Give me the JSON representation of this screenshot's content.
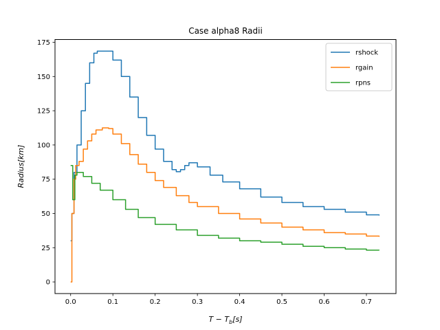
{
  "chart_data": {
    "type": "line",
    "title": "Case alpha8 Radii",
    "xlabel": "T − T_b[s]",
    "ylabel": "Radius[km]",
    "xlim": [
      -0.037,
      0.77
    ],
    "ylim": [
      -8.5,
      177
    ],
    "x_ticks": [
      0.0,
      0.1,
      0.2,
      0.3,
      0.4,
      0.5,
      0.6,
      0.7
    ],
    "x_tick_labels": [
      "0.0",
      "0.1",
      "0.2",
      "0.3",
      "0.4",
      "0.5",
      "0.6",
      "0.7"
    ],
    "y_ticks": [
      0,
      25,
      50,
      75,
      100,
      125,
      150,
      175
    ],
    "y_tick_labels": [
      "0",
      "25",
      "50",
      "75",
      "100",
      "125",
      "150",
      "175"
    ],
    "legend_position": "top-right",
    "grid": false,
    "series": [
      {
        "name": "rshock",
        "color": "#1f77b4",
        "points": [
          [
            0.0,
            30
          ],
          [
            0.003,
            50
          ],
          [
            0.008,
            80
          ],
          [
            0.015,
            100
          ],
          [
            0.025,
            125
          ],
          [
            0.035,
            145
          ],
          [
            0.045,
            160
          ],
          [
            0.055,
            167
          ],
          [
            0.063,
            168.5
          ],
          [
            0.085,
            168.5
          ],
          [
            0.1,
            162
          ],
          [
            0.12,
            150
          ],
          [
            0.14,
            135
          ],
          [
            0.16,
            120
          ],
          [
            0.18,
            107
          ],
          [
            0.2,
            97
          ],
          [
            0.22,
            88
          ],
          [
            0.24,
            82
          ],
          [
            0.25,
            80.5
          ],
          [
            0.26,
            82
          ],
          [
            0.27,
            85
          ],
          [
            0.28,
            87
          ],
          [
            0.29,
            87
          ],
          [
            0.3,
            84
          ],
          [
            0.33,
            78
          ],
          [
            0.36,
            73
          ],
          [
            0.4,
            68
          ],
          [
            0.45,
            62
          ],
          [
            0.5,
            58
          ],
          [
            0.55,
            55
          ],
          [
            0.6,
            53
          ],
          [
            0.65,
            51
          ],
          [
            0.7,
            49
          ],
          [
            0.73,
            48.5
          ]
        ]
      },
      {
        "name": "rgain",
        "color": "#ff7f0e",
        "points": [
          [
            0.0,
            0
          ],
          [
            0.003,
            50
          ],
          [
            0.008,
            75
          ],
          [
            0.012,
            85
          ],
          [
            0.02,
            88
          ],
          [
            0.03,
            97
          ],
          [
            0.04,
            103
          ],
          [
            0.05,
            108
          ],
          [
            0.06,
            111
          ],
          [
            0.075,
            112.5
          ],
          [
            0.09,
            112
          ],
          [
            0.1,
            108
          ],
          [
            0.12,
            101
          ],
          [
            0.14,
            93
          ],
          [
            0.16,
            86
          ],
          [
            0.18,
            80
          ],
          [
            0.2,
            74
          ],
          [
            0.22,
            69
          ],
          [
            0.25,
            63
          ],
          [
            0.28,
            58
          ],
          [
            0.3,
            55
          ],
          [
            0.35,
            50
          ],
          [
            0.4,
            46
          ],
          [
            0.45,
            43
          ],
          [
            0.5,
            40
          ],
          [
            0.55,
            38
          ],
          [
            0.6,
            36
          ],
          [
            0.65,
            35
          ],
          [
            0.7,
            33.5
          ],
          [
            0.73,
            33
          ]
        ]
      },
      {
        "name": "rpns",
        "color": "#2ca02c",
        "points": [
          [
            0.0,
            85
          ],
          [
            0.005,
            60
          ],
          [
            0.01,
            78
          ],
          [
            0.015,
            80
          ],
          [
            0.03,
            77
          ],
          [
            0.05,
            72
          ],
          [
            0.07,
            67
          ],
          [
            0.1,
            60
          ],
          [
            0.13,
            53
          ],
          [
            0.16,
            47
          ],
          [
            0.2,
            42
          ],
          [
            0.25,
            38
          ],
          [
            0.3,
            34
          ],
          [
            0.35,
            32
          ],
          [
            0.4,
            30
          ],
          [
            0.45,
            29
          ],
          [
            0.5,
            27.5
          ],
          [
            0.55,
            26
          ],
          [
            0.6,
            25
          ],
          [
            0.65,
            24
          ],
          [
            0.7,
            23.2
          ],
          [
            0.73,
            23
          ]
        ]
      }
    ]
  }
}
